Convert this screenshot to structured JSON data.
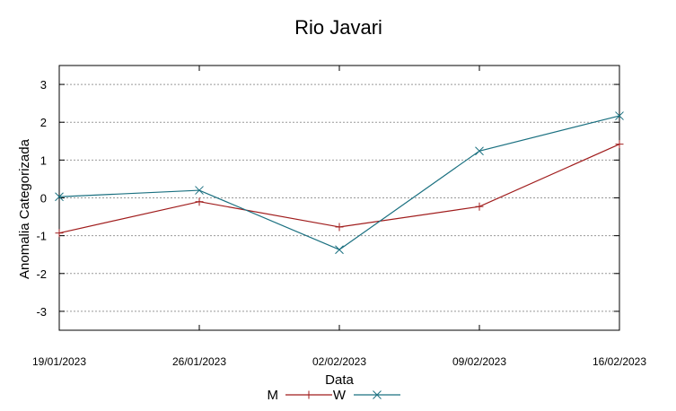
{
  "chart_data": {
    "type": "line",
    "title": "Rio Javari",
    "xlabel": "Data",
    "ylabel": "Anomalia Categorizada",
    "categories": [
      "19/01/2023",
      "26/01/2023",
      "02/02/2023",
      "09/02/2023",
      "16/02/2023"
    ],
    "ylim": [
      -3.5,
      3.5
    ],
    "yticks": [
      -3,
      -2,
      -1,
      0,
      1,
      2,
      3
    ],
    "ytick_labels": [
      "-3",
      "-2",
      "-1",
      "0",
      "1",
      "2",
      "3"
    ],
    "grid": true,
    "legend_position": "bottom-center",
    "series": [
      {
        "name": "M",
        "color": "#a01c1c",
        "marker": "plus",
        "values": [
          -0.93,
          -0.1,
          -0.77,
          -0.23,
          1.42
        ]
      },
      {
        "name": "W",
        "color": "#1a7080",
        "marker": "cross",
        "values": [
          0.03,
          0.2,
          -1.37,
          1.24,
          2.17
        ]
      }
    ]
  }
}
